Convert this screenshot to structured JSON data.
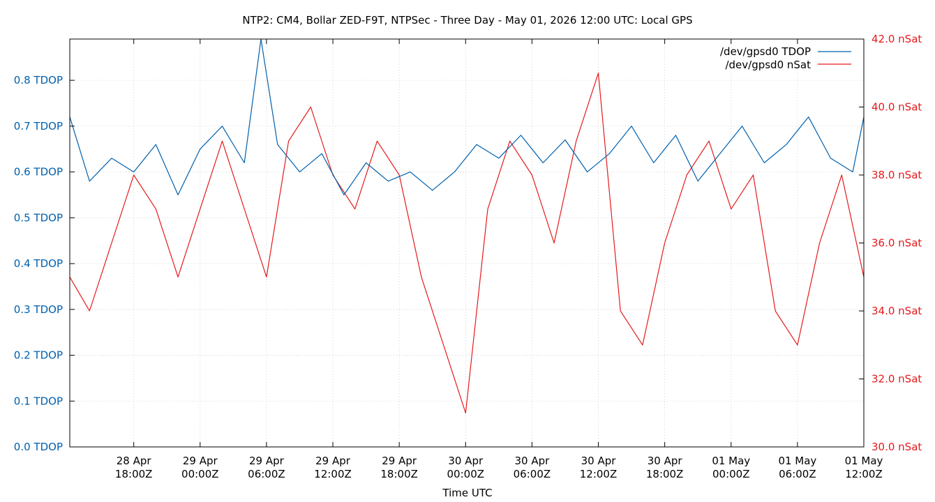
{
  "chart_data": {
    "type": "line",
    "title": "NTP2: CM4, Bollar ZED-F9T, NTPSec - Three Day - May 01, 2026 12:00 UTC: Local GPS",
    "xlabel": "Time UTC",
    "x_range": [
      "2026-04-28T12:13Z",
      "2026-05-01T12:00Z"
    ],
    "x_ticks": [
      {
        "t": "2026-04-28T18:00Z",
        "line1": "28 Apr",
        "line2": "18:00Z"
      },
      {
        "t": "2026-04-29T00:00Z",
        "line1": "29 Apr",
        "line2": "00:00Z"
      },
      {
        "t": "2026-04-29T06:00Z",
        "line1": "29 Apr",
        "line2": "06:00Z"
      },
      {
        "t": "2026-04-29T12:00Z",
        "line1": "29 Apr",
        "line2": "12:00Z"
      },
      {
        "t": "2026-04-29T18:00Z",
        "line1": "29 Apr",
        "line2": "18:00Z"
      },
      {
        "t": "2026-04-30T00:00Z",
        "line1": "30 Apr",
        "line2": "00:00Z"
      },
      {
        "t": "2026-04-30T06:00Z",
        "line1": "30 Apr",
        "line2": "06:00Z"
      },
      {
        "t": "2026-04-30T12:00Z",
        "line1": "30 Apr",
        "line2": "12:00Z"
      },
      {
        "t": "2026-04-30T18:00Z",
        "line1": "30 Apr",
        "line2": "18:00Z"
      },
      {
        "t": "2026-05-01T00:00Z",
        "line1": "01 May",
        "line2": "00:00Z"
      },
      {
        "t": "2026-05-01T06:00Z",
        "line1": "01 May",
        "line2": "06:00Z"
      },
      {
        "t": "2026-05-01T12:00Z",
        "line1": "01 May",
        "line2": "12:00Z"
      }
    ],
    "y_left": {
      "range": [
        0.0,
        0.89
      ],
      "ticks": [
        0.0,
        0.1,
        0.2,
        0.3,
        0.4,
        0.5,
        0.6,
        0.7,
        0.8
      ],
      "tick_labels": [
        "0.0 TDOP",
        "0.1 TDOP",
        "0.2 TDOP",
        "0.3 TDOP",
        "0.4 TDOP",
        "0.5 TDOP",
        "0.6 TDOP",
        "0.7 TDOP",
        "0.8 TDOP"
      ],
      "color": "#0060ad"
    },
    "y_right": {
      "range": [
        30.0,
        42.0
      ],
      "ticks": [
        30,
        32,
        34,
        36,
        38,
        40,
        42
      ],
      "tick_labels": [
        "30.0 nSat",
        "32.0 nSat",
        "34.0 nSat",
        "36.0 nSat",
        "38.0 nSat",
        "40.0 nSat",
        "42.0 nSat"
      ],
      "color": "#e41a1c"
    },
    "grid": true,
    "legend_position": "top-right",
    "series": [
      {
        "name": "/dev/gpsd0 TDOP",
        "axis": "left",
        "color": "#0060ad",
        "x": [
          "2026-04-28T12:13Z",
          "2026-04-28T14:00Z",
          "2026-04-28T16:00Z",
          "2026-04-28T18:00Z",
          "2026-04-28T20:00Z",
          "2026-04-28T22:00Z",
          "2026-04-29T00:00Z",
          "2026-04-29T02:00Z",
          "2026-04-29T04:00Z",
          "2026-04-29T05:30Z",
          "2026-04-29T07:00Z",
          "2026-04-29T09:00Z",
          "2026-04-29T11:00Z",
          "2026-04-29T13:00Z",
          "2026-04-29T15:00Z",
          "2026-04-29T17:00Z",
          "2026-04-29T19:00Z",
          "2026-04-29T21:00Z",
          "2026-04-29T23:00Z",
          "2026-04-30T01:00Z",
          "2026-04-30T03:00Z",
          "2026-04-30T05:00Z",
          "2026-04-30T07:00Z",
          "2026-04-30T09:00Z",
          "2026-04-30T11:00Z",
          "2026-04-30T13:00Z",
          "2026-04-30T15:00Z",
          "2026-04-30T17:00Z",
          "2026-04-30T19:00Z",
          "2026-04-30T21:00Z",
          "2026-04-30T23:00Z",
          "2026-05-01T01:00Z",
          "2026-05-01T03:00Z",
          "2026-05-01T05:00Z",
          "2026-05-01T07:00Z",
          "2026-05-01T09:00Z",
          "2026-05-01T11:00Z",
          "2026-05-01T12:00Z"
        ],
        "values": [
          0.72,
          0.58,
          0.63,
          0.6,
          0.66,
          0.55,
          0.65,
          0.7,
          0.62,
          0.89,
          0.66,
          0.6,
          0.64,
          0.55,
          0.62,
          0.58,
          0.6,
          0.56,
          0.6,
          0.66,
          0.63,
          0.68,
          0.62,
          0.67,
          0.6,
          0.64,
          0.7,
          0.62,
          0.68,
          0.58,
          0.64,
          0.7,
          0.62,
          0.66,
          0.72,
          0.63,
          0.6,
          0.72
        ]
      },
      {
        "name": "/dev/gpsd0 nSat",
        "axis": "right",
        "color": "#e41a1c",
        "x": [
          "2026-04-28T12:13Z",
          "2026-04-28T14:00Z",
          "2026-04-28T16:00Z",
          "2026-04-28T18:00Z",
          "2026-04-28T20:00Z",
          "2026-04-28T22:00Z",
          "2026-04-29T00:00Z",
          "2026-04-29T02:00Z",
          "2026-04-29T04:00Z",
          "2026-04-29T06:00Z",
          "2026-04-29T08:00Z",
          "2026-04-29T10:00Z",
          "2026-04-29T12:00Z",
          "2026-04-29T14:00Z",
          "2026-04-29T16:00Z",
          "2026-04-29T18:00Z",
          "2026-04-29T20:00Z",
          "2026-04-29T22:00Z",
          "2026-04-30T00:00Z",
          "2026-04-30T02:00Z",
          "2026-04-30T04:00Z",
          "2026-04-30T06:00Z",
          "2026-04-30T08:00Z",
          "2026-04-30T10:00Z",
          "2026-04-30T12:00Z",
          "2026-04-30T14:00Z",
          "2026-04-30T16:00Z",
          "2026-04-30T18:00Z",
          "2026-04-30T20:00Z",
          "2026-04-30T22:00Z",
          "2026-05-01T00:00Z",
          "2026-05-01T02:00Z",
          "2026-05-01T04:00Z",
          "2026-05-01T06:00Z",
          "2026-05-01T08:00Z",
          "2026-05-01T10:00Z",
          "2026-05-01T12:00Z"
        ],
        "values": [
          35,
          34,
          36,
          38,
          37,
          35,
          37,
          39,
          37,
          35,
          39,
          40,
          38,
          37,
          39,
          38,
          35,
          33,
          31,
          37,
          39,
          38,
          36,
          39,
          41,
          34,
          33,
          36,
          38,
          39,
          37,
          38,
          34,
          33,
          36,
          38,
          35
        ],
        "min_value": 30.0,
        "max_value": 42.0
      }
    ]
  }
}
